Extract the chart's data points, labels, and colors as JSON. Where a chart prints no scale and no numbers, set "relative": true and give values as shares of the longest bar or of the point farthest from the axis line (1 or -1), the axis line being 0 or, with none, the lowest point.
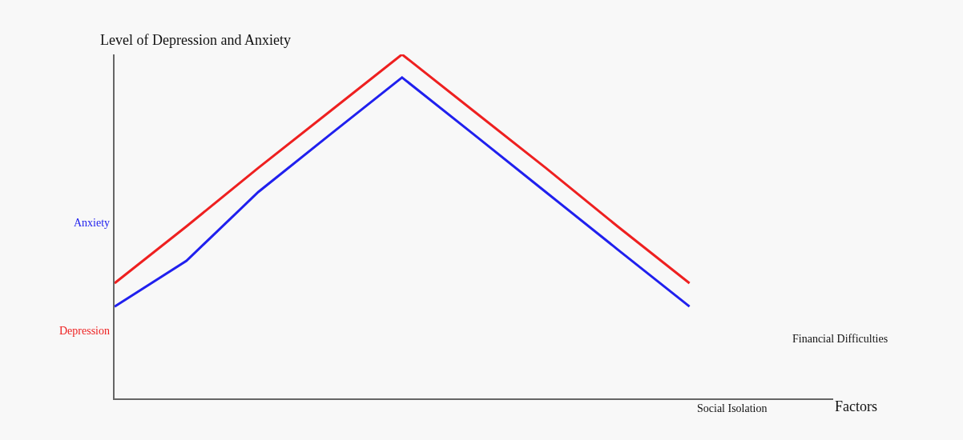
{
  "chart_data": {
    "type": "line",
    "relative": true,
    "ylabel": "Level of Depression and Anxiety",
    "xlabel": "Factors",
    "categories": [
      null,
      null,
      null,
      null,
      null,
      null,
      null,
      null,
      null,
      null,
      null
    ],
    "series": [
      {
        "name": "Depression",
        "color": "#ee2020",
        "values": [
          0.335,
          0.5,
          0.67,
          0.835,
          1,
          0.835,
          0.67,
          0.5,
          0.335,
          null,
          null
        ]
      },
      {
        "name": "Anxiety",
        "color": "#2020ee",
        "values": [
          0.267,
          0.4,
          0.6,
          0.767,
          0.933,
          0.767,
          0.6,
          0.433,
          0.267,
          null,
          null
        ]
      }
    ],
    "annotations": [
      "Financial Difficulties",
      "Social Isolation"
    ],
    "legend": false,
    "grid": false,
    "marker": "none",
    "line_style": "solid"
  }
}
